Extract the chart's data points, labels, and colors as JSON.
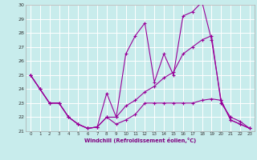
{
  "xlabel": "Windchill (Refroidissement éolien,°C)",
  "background_color": "#c8ecec",
  "grid_color": "#ffffff",
  "line_color": "#990099",
  "xlim": [
    -0.5,
    23.5
  ],
  "ylim": [
    21,
    30
  ],
  "yticks": [
    21,
    22,
    23,
    24,
    25,
    26,
    27,
    28,
    29,
    30
  ],
  "xticks": [
    0,
    1,
    2,
    3,
    4,
    5,
    6,
    7,
    8,
    9,
    10,
    11,
    12,
    13,
    14,
    15,
    16,
    17,
    18,
    19,
    20,
    21,
    22,
    23
  ],
  "series1_x": [
    0,
    1,
    2,
    3,
    4,
    5,
    6,
    7,
    8,
    9,
    10,
    11,
    12,
    13,
    14,
    15,
    16,
    17,
    18,
    19,
    20,
    21,
    22,
    23
  ],
  "series1_y": [
    25.0,
    24.0,
    23.0,
    23.0,
    22.0,
    21.5,
    21.2,
    21.3,
    23.7,
    22.0,
    26.5,
    27.8,
    28.7,
    24.5,
    26.5,
    25.0,
    29.2,
    29.5,
    30.2,
    27.5,
    23.2,
    21.8,
    21.5,
    21.2
  ],
  "series2_x": [
    0,
    1,
    2,
    3,
    4,
    5,
    6,
    7,
    8,
    9,
    10,
    11,
    12,
    13,
    14,
    15,
    16,
    17,
    18,
    19,
    20,
    21,
    22,
    23
  ],
  "series2_y": [
    25.0,
    24.0,
    23.0,
    23.0,
    22.0,
    21.5,
    21.2,
    21.3,
    22.0,
    22.0,
    22.8,
    23.2,
    23.8,
    24.2,
    24.8,
    25.2,
    26.5,
    27.0,
    27.5,
    27.8,
    23.0,
    22.0,
    21.7,
    21.2
  ],
  "series3_x": [
    0,
    1,
    2,
    3,
    4,
    5,
    6,
    7,
    8,
    9,
    10,
    11,
    12,
    13,
    14,
    15,
    16,
    17,
    18,
    19,
    20,
    21,
    22,
    23
  ],
  "series3_y": [
    25.0,
    24.0,
    23.0,
    23.0,
    22.0,
    21.5,
    21.2,
    21.3,
    22.0,
    21.5,
    21.8,
    22.2,
    23.0,
    23.0,
    23.0,
    23.0,
    23.0,
    23.0,
    23.2,
    23.3,
    23.2,
    21.8,
    21.5,
    21.2
  ]
}
